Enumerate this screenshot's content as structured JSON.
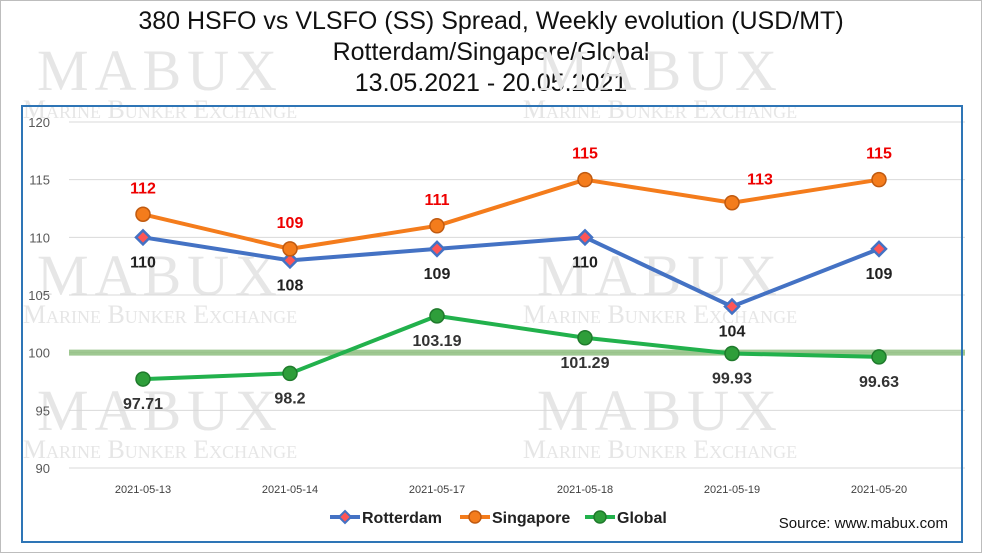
{
  "title_lines": [
    "380 HSFO vs VLSFO (SS) Spread, Weekly evolution (USD/MT)",
    "Rotterdam/Singapore/Global",
    "13.05.2021 - 20.05.2021"
  ],
  "source": "Source: www.mabux.com",
  "watermark": {
    "brand": "MABUX",
    "tagline": "Marine Bunker Exchange"
  },
  "chart_data": {
    "type": "line",
    "title": "380 HSFO vs VLSFO (SS) Spread, Weekly evolution (USD/MT)",
    "subtitle": "Rotterdam/Singapore/Global 13.05.2021 - 20.05.2021",
    "categories": [
      "2021-05-13",
      "2021-05-14",
      "2021-05-17",
      "2021-05-18",
      "2021-05-19",
      "2021-05-20"
    ],
    "ylim": [
      90,
      120
    ],
    "yticks": [
      90,
      95,
      100,
      105,
      110,
      115,
      120
    ],
    "grid": true,
    "reference_line": 100,
    "legend": "bottom",
    "series": [
      {
        "name": "Rotterdam",
        "values": [
          110,
          108,
          109,
          110,
          104,
          109
        ],
        "labels": [
          "110",
          "108",
          "109",
          "110",
          "104",
          "109"
        ],
        "color": "#4472c4",
        "marker": "diamond",
        "marker_fill": "#ff5555",
        "label_color": "#222222"
      },
      {
        "name": "Singapore",
        "values": [
          112,
          109,
          111,
          115,
          113,
          115
        ],
        "labels": [
          "112",
          "109",
          "111",
          "115",
          "113",
          "115"
        ],
        "color": "#f47c1c",
        "marker": "circle",
        "marker_fill": "#f47c1c",
        "label_color": "#ee0000"
      },
      {
        "name": "Global",
        "values": [
          97.71,
          98.2,
          103.19,
          101.29,
          99.93,
          99.63
        ],
        "labels": [
          "97.71",
          "98.2",
          "103.19",
          "101.29",
          "99.93",
          "99.63"
        ],
        "color": "#22b14c",
        "marker": "circle",
        "marker_fill": "#2e9e3a",
        "label_color": "#333333"
      }
    ]
  }
}
